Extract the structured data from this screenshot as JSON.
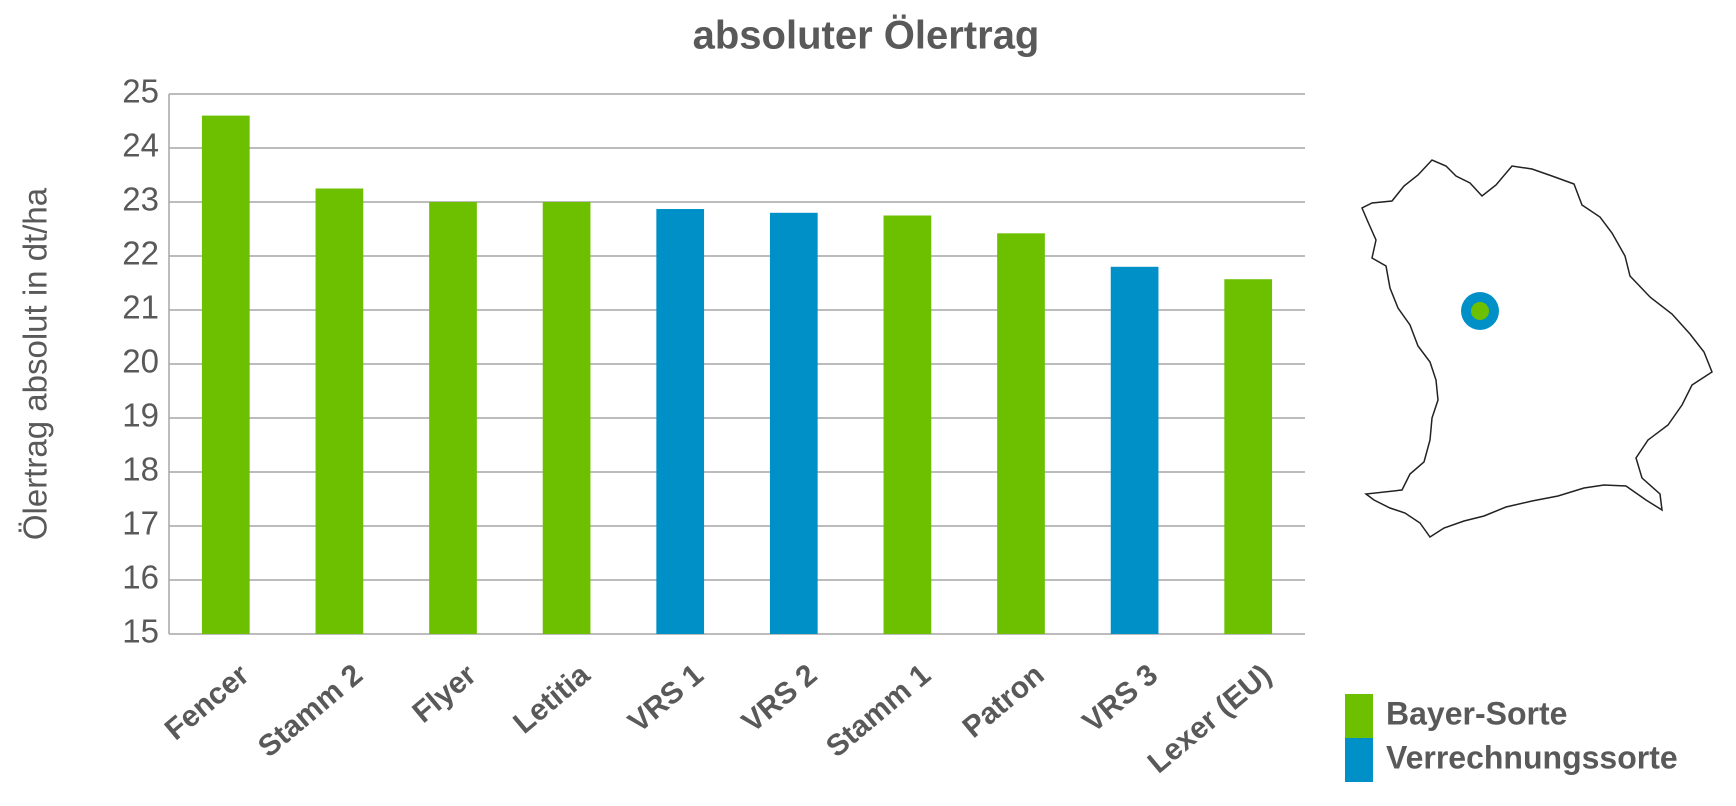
{
  "chart_data": {
    "type": "bar",
    "title": "absoluter Ölertrag",
    "y_label": "Ölertrag absolut in dt/ha",
    "categories": [
      "Fencer",
      "Stamm 2",
      "Flyer",
      "Letitia",
      "VRS 1",
      "VRS 2",
      "Stamm 1",
      "Patron",
      "VRS 3",
      "Lexer (EU)"
    ],
    "series": [
      {
        "name": "Bayer-Sorte",
        "color": "#6cc000",
        "values": [
          24.6,
          23.25,
          23.0,
          23.0,
          null,
          null,
          22.75,
          22.42,
          null,
          21.57
        ]
      },
      {
        "name": "Verrechnungssorte",
        "color": "#0090c8",
        "values": [
          null,
          null,
          null,
          null,
          22.87,
          22.8,
          null,
          null,
          21.8,
          null
        ]
      }
    ],
    "ylim": [
      15,
      25
    ],
    "yticks": [
      15,
      16,
      17,
      18,
      19,
      20,
      21,
      22,
      23,
      24,
      25
    ],
    "grid": true
  }
}
